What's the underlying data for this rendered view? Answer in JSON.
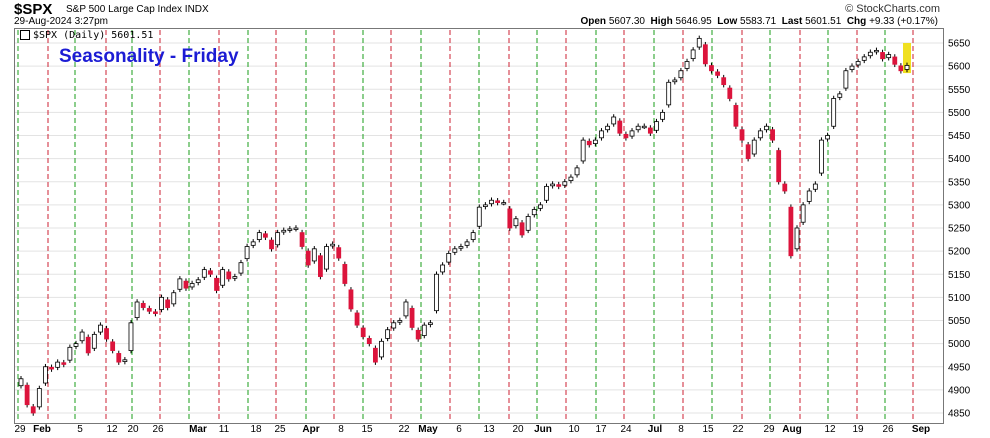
{
  "header": {
    "symbol": "$SPX",
    "description": "S&P 500 Large Cap Index INDX",
    "datetime": "29-Aug-2024 3:27pm",
    "provider": "© StockCharts.com",
    "open_label": "Open",
    "open": "5607.30",
    "high_label": "High",
    "high": "5646.95",
    "low_label": "Low",
    "low": "5583.71",
    "last_label": "Last",
    "last": "5601.51",
    "chg_label": "Chg",
    "chg": "+9.33 (+0.17%)"
  },
  "legend": {
    "text": "$SPX (Daily) 5601.51"
  },
  "colors": {
    "up": "#ffffff",
    "down": "#dc143c",
    "friday_line": "#1a9e1a",
    "alt_line": "#cc2233",
    "title": "#1c1cd4",
    "last_highlight": "#f0e020"
  },
  "chart_data": {
    "type": "candlestick",
    "title": "Seasonality - Friday",
    "y_ticks": [
      4850,
      4900,
      4950,
      5000,
      5050,
      5100,
      5150,
      5200,
      5250,
      5300,
      5350,
      5400,
      5450,
      5500,
      5550,
      5600,
      5650
    ],
    "ylim": [
      4825,
      5668
    ],
    "x_tick_labels": [
      "29",
      "Feb",
      "5",
      "12",
      "20",
      "26",
      "Mar",
      "11",
      "18",
      "25",
      "Apr",
      "8",
      "15",
      "22",
      "May",
      "6",
      "13",
      "20",
      "Jun",
      "10",
      "17",
      "24",
      "Jul",
      "8",
      "15",
      "22",
      "29",
      "Aug",
      "12",
      "19",
      "26",
      "Sep"
    ],
    "month_labels": [
      "Feb",
      "Mar",
      "Apr",
      "May",
      "Jun",
      "Jul",
      "Aug",
      "Sep"
    ],
    "vertical_line_colors": [
      "green",
      "red"
    ],
    "closes": [
      4924,
      4868,
      4850,
      4903,
      4950,
      4945,
      4960,
      4955,
      4992,
      5000,
      5025,
      4980,
      5020,
      5040,
      5010,
      4985,
      4960,
      4965,
      5045,
      5090,
      5078,
      5070,
      5065,
      5100,
      5078,
      5110,
      5140,
      5120,
      5130,
      5138,
      5160,
      5150,
      5115,
      5160,
      5140,
      5145,
      5175,
      5210,
      5220,
      5240,
      5230,
      5205,
      5240,
      5245,
      5248,
      5250,
      5210,
      5170,
      5205,
      5145,
      5210,
      5215,
      5185,
      5130,
      5075,
      5040,
      5015,
      5000,
      4960,
      5005,
      5030,
      5045,
      5050,
      5090,
      5035,
      5010,
      5040,
      5045,
      5150,
      5170,
      5195,
      5205,
      5210,
      5220,
      5240,
      5295,
      5300,
      5310,
      5305,
      5305,
      5250,
      5270,
      5235,
      5275,
      5290,
      5300,
      5340,
      5345,
      5340,
      5350,
      5360,
      5380,
      5440,
      5430,
      5440,
      5460,
      5470,
      5490,
      5455,
      5445,
      5460,
      5470,
      5470,
      5455,
      5480,
      5500,
      5565,
      5570,
      5590,
      5610,
      5635,
      5660,
      5605,
      5590,
      5580,
      5560,
      5530,
      5470,
      5440,
      5400,
      5440,
      5460,
      5470,
      5440,
      5350,
      5330,
      5190,
      5250,
      5300,
      5330,
      5345,
      5440,
      5450,
      5530,
      5540,
      5590,
      5600,
      5610,
      5620,
      5630,
      5634,
      5616,
      5625,
      5604,
      5590,
      5601.51
    ]
  }
}
